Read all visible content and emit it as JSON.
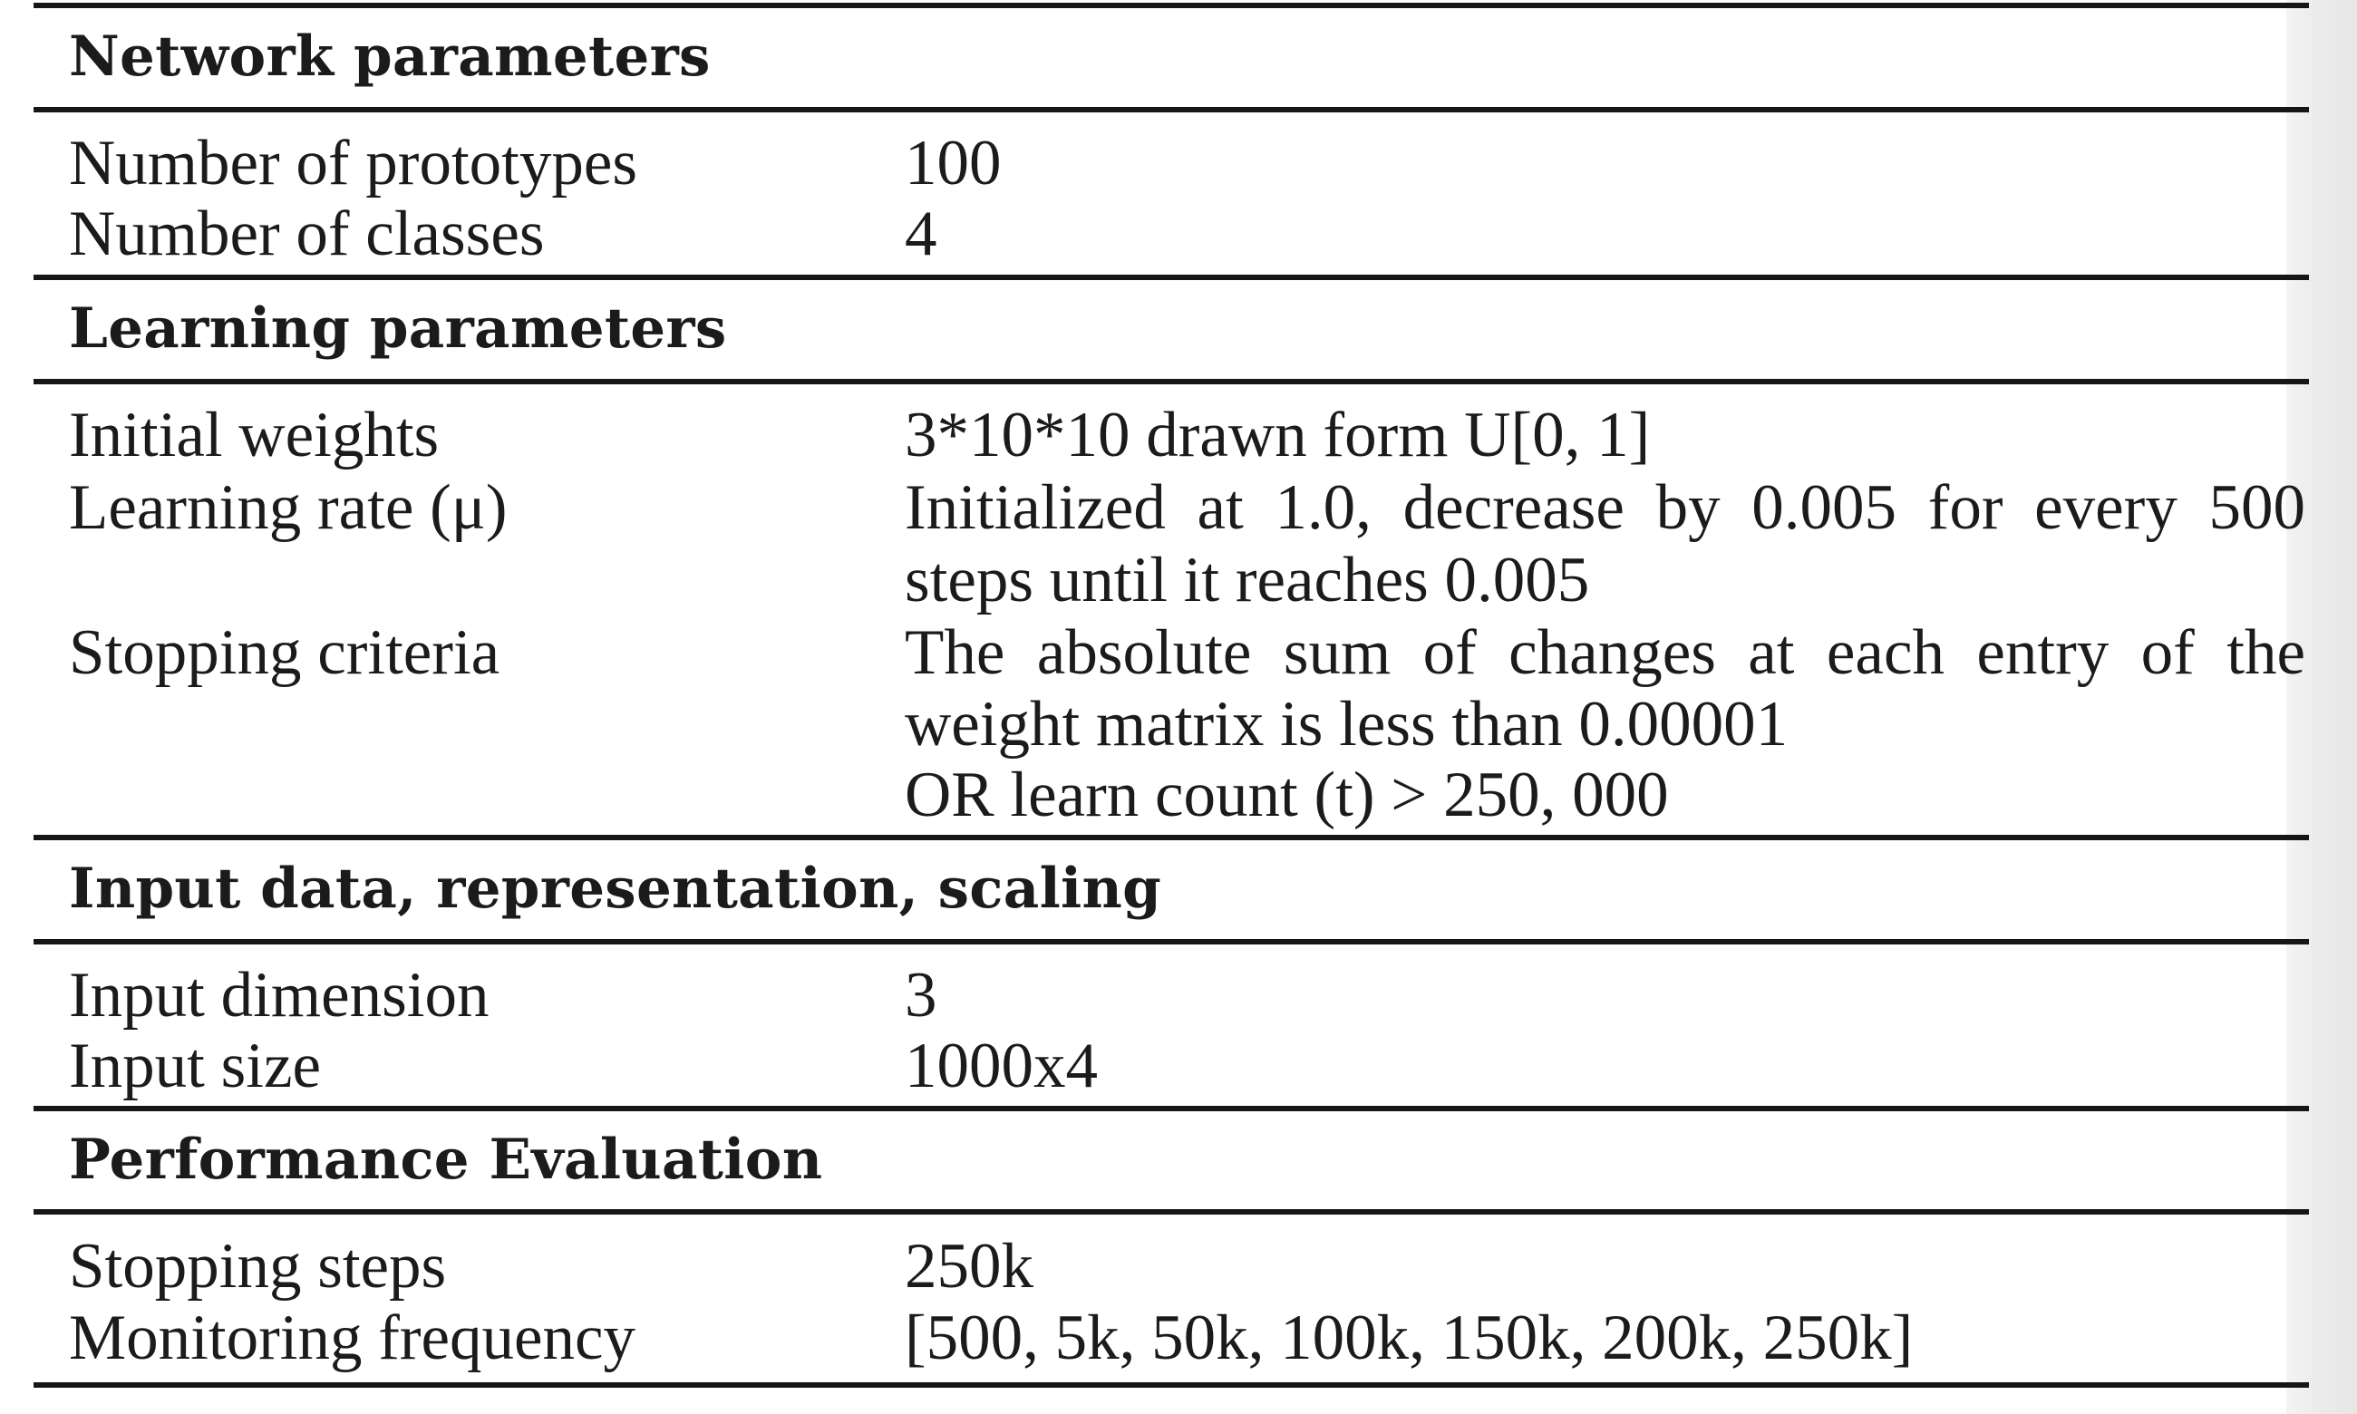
{
  "sections": [
    {
      "heading": "Network parameters",
      "rows": [
        {
          "name": "Number of prototypes",
          "value_lines": [
            "100"
          ]
        },
        {
          "name": "Number of classes",
          "value_lines": [
            "4"
          ]
        }
      ]
    },
    {
      "heading": "Learning parameters",
      "rows": [
        {
          "name": "Initial weights",
          "value_lines": [
            "3*10*10 drawn form U[0, 1]"
          ]
        },
        {
          "name": "Learning rate (μ)",
          "value_lines": [
            "Initialized at 1.0, decrease by 0.005 for every 500",
            "steps until it reaches 0.005"
          ]
        },
        {
          "name": "Stopping criteria",
          "value_lines": [
            "The absolute sum of changes at each entry of the",
            "weight matrix is less than 0.00001",
            "OR learn count (t) > 250, 000"
          ]
        }
      ]
    },
    {
      "heading": "Input data, representation, scaling",
      "rows": [
        {
          "name": "Input dimension",
          "value_lines": [
            "3"
          ]
        },
        {
          "name": "Input size",
          "value_lines": [
            "1000x4"
          ]
        }
      ]
    },
    {
      "heading": "Performance Evaluation",
      "rows": [
        {
          "name": "Stopping steps",
          "value_lines": [
            "250k"
          ]
        },
        {
          "name": "Monitoring frequency",
          "value_lines": [
            "[500, 5k, 50k, 100k, 150k, 200k, 250k]"
          ]
        }
      ]
    }
  ]
}
